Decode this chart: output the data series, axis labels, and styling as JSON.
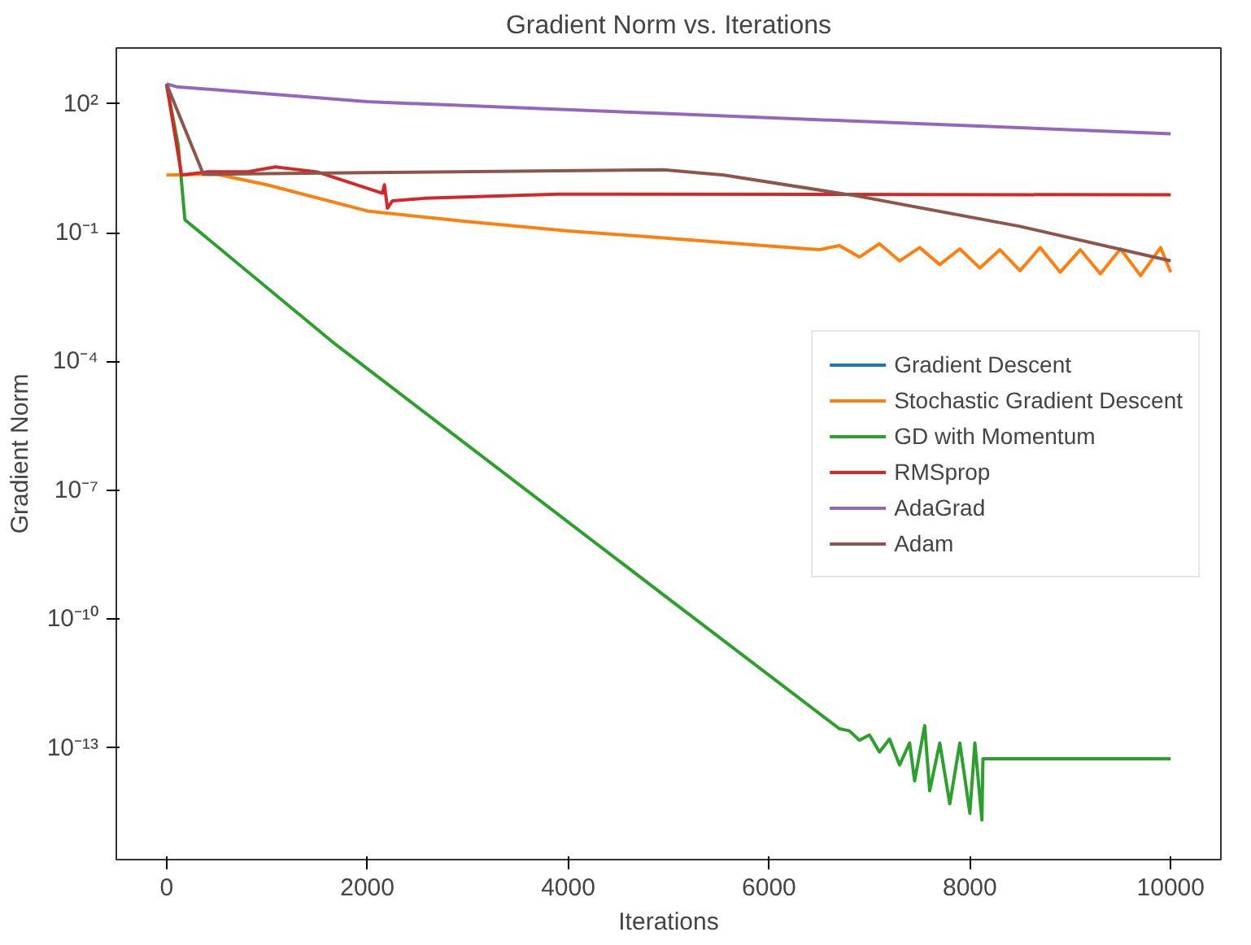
{
  "chart_data": {
    "type": "line",
    "title": "Gradient Norm vs. Iterations",
    "xlabel": "Iterations",
    "ylabel": "Gradient Norm",
    "log": "y",
    "grid": false,
    "legend": "right",
    "marker": "none",
    "line_style": "solid",
    "xlim": [
      -500,
      10500
    ],
    "xticks": [
      0,
      2000,
      4000,
      6000,
      8000,
      10000
    ],
    "ylim": [
      2.5e-16,
      2000
    ],
    "yticks": [
      {
        "value": 100,
        "label": "10²"
      },
      {
        "value": 0.1,
        "label": "10⁻¹"
      },
      {
        "value": 0.0001,
        "label": "10⁻⁴"
      },
      {
        "value": 1e-07,
        "label": "10⁻⁷"
      },
      {
        "value": 1e-10,
        "label": "10⁻¹⁰"
      },
      {
        "value": 1e-13,
        "label": "10⁻¹³"
      }
    ],
    "series": [
      {
        "name": "Gradient Descent",
        "color": "#1f77b4"
      },
      {
        "name": "Stochastic Gradient Descent",
        "color": "#ff7f0e",
        "x": [
          0,
          500,
          1000,
          2000,
          3000,
          4000,
          5000,
          6000,
          6500,
          6700,
          6900,
          7100,
          7300,
          7500,
          7700,
          7900,
          8100,
          8300,
          8500,
          8700,
          8900,
          9100,
          9300,
          9500,
          9700,
          9900,
          10000
        ],
        "values": [
          2.2,
          2.3,
          1.3,
          0.32,
          0.18,
          0.11,
          0.074,
          0.049,
          0.04,
          0.05,
          0.027,
          0.055,
          0.022,
          0.045,
          0.018,
          0.042,
          0.015,
          0.04,
          0.013,
          0.045,
          0.012,
          0.04,
          0.011,
          0.042,
          0.01,
          0.045,
          0.012
        ]
      },
      {
        "name": "GD with Momentum",
        "color": "#2ca02c",
        "x": [
          0,
          117,
          183,
          1683,
          5033,
          6700,
          6800,
          6900,
          7000,
          7100,
          7200,
          7300,
          7400,
          7450,
          7550,
          7600,
          7700,
          7800,
          7900,
          8000,
          8050,
          8120,
          8130,
          10000
        ],
        "values": [
          290,
          10.7,
          0.2,
          0.00025,
          2.6e-10,
          2.8e-13,
          2.5e-13,
          1.5e-13,
          2e-13,
          8e-14,
          1.6e-13,
          4e-14,
          1.3e-13,
          1.7e-14,
          3.3e-13,
          1e-14,
          1.3e-13,
          5e-15,
          1.3e-13,
          3e-15,
          1.3e-13,
          2.1e-15,
          5.6e-14,
          5.6e-14
        ]
      },
      {
        "name": "RMSprop",
        "color": "#d62728",
        "x": [
          0,
          150,
          400,
          800,
          1083,
          1500,
          2150,
          2170,
          2200,
          2250,
          2567,
          3900,
          10000
        ],
        "values": [
          290,
          2.2,
          2.6,
          2.6,
          3.4,
          2.6,
          0.83,
          1.3,
          0.37,
          0.55,
          0.63,
          0.79,
          0.76
        ]
      },
      {
        "name": "AdaGrad",
        "color": "#9467bd",
        "x": [
          0,
          100,
          2000,
          5000,
          10000
        ],
        "values": [
          290,
          250,
          112,
          59,
          20
        ]
      },
      {
        "name": "Adam",
        "color": "#8c564b",
        "x": [
          0,
          367,
          2000,
          4950,
          5550,
          6883,
          8500,
          10000
        ],
        "values": [
          290,
          2.3,
          2.5,
          2.9,
          2.2,
          0.71,
          0.14,
          0.022
        ]
      }
    ]
  }
}
